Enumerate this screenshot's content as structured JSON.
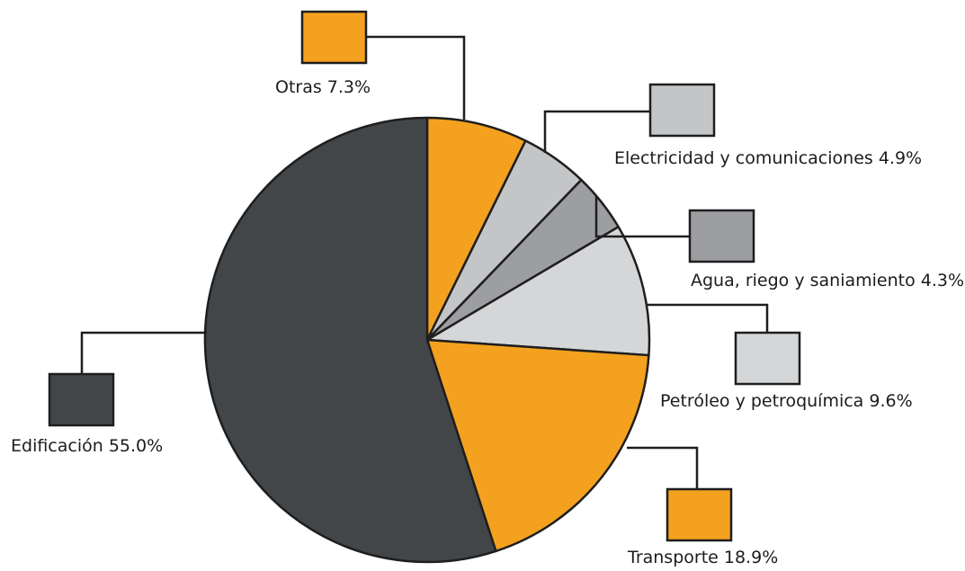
{
  "chart_data": {
    "type": "pie",
    "title": "",
    "slices": [
      {
        "label": "Otras",
        "value": 7.3,
        "text": "Otras 7.3%",
        "color": "#f4a11f"
      },
      {
        "label": "Electricidad y comunicaciones",
        "value": 4.9,
        "text": "Electricidad y comunicaciones 4.9%",
        "color": "#c4c5c7"
      },
      {
        "label": "Agua, riego y saniamiento",
        "value": 4.3,
        "text": "Agua, riego y saniamiento 4.3%",
        "color": "#9c9ea1"
      },
      {
        "label": "Petróleo y petroquímica",
        "value": 9.6,
        "text": "Petróleo y petroquímica 9.6%",
        "color": "#d5d6d8"
      },
      {
        "label": "Transporte",
        "value": 18.9,
        "text": "Transporte 18.9%",
        "color": "#f4a11f"
      },
      {
        "label": "Edificación",
        "value": 55.0,
        "text": "Edificación 55.0%",
        "color": "#434649"
      }
    ],
    "start_angle": "12 o'clock",
    "direction": "clockwise",
    "legend": "callout boxes"
  }
}
